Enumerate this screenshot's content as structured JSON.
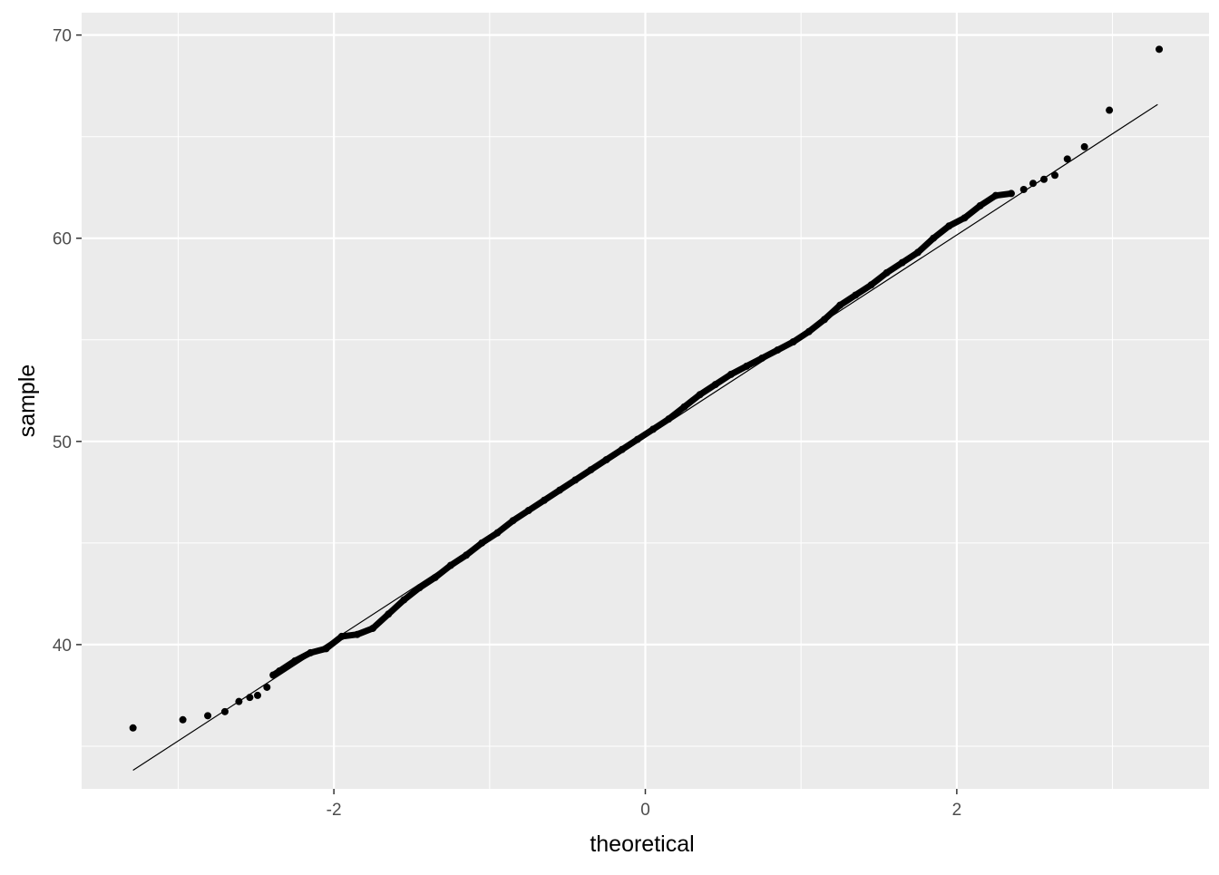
{
  "chart_data": {
    "type": "scatter",
    "subtype": "qq-plot",
    "title": "",
    "xlabel": "theoretical",
    "ylabel": "sample",
    "xlim": [
      -3.62,
      3.62
    ],
    "ylim": [
      32.9,
      71.1
    ],
    "x_ticks": [
      -2,
      0,
      2
    ],
    "y_ticks": [
      40,
      50,
      60,
      70
    ],
    "x_tick_labels": [
      "-2",
      "0",
      "2"
    ],
    "y_tick_labels": [
      "40",
      "50",
      "60",
      "70"
    ],
    "grid": true,
    "colors": {
      "panel": "#EBEBEB",
      "grid": "#FFFFFF",
      "points": "#000000",
      "line": "#000000",
      "tick_text": "#4D4D4D"
    },
    "reference_line": {
      "intercept": 50.2,
      "slope": 4.98,
      "x_range": [
        -3.29,
        3.29
      ]
    },
    "points": [
      [
        -3.29,
        35.9
      ],
      [
        -2.97,
        36.3
      ],
      [
        -2.81,
        36.5
      ],
      [
        -2.7,
        36.7
      ],
      [
        -2.61,
        37.2
      ],
      [
        -2.54,
        37.4
      ],
      [
        -2.49,
        37.5
      ],
      [
        -2.43,
        37.9
      ],
      [
        -2.39,
        38.5
      ],
      [
        -2.35,
        38.7
      ],
      [
        -2.25,
        39.2
      ],
      [
        -2.15,
        39.6
      ],
      [
        -2.05,
        39.8
      ],
      [
        -1.95,
        40.4
      ],
      [
        -1.85,
        40.5
      ],
      [
        -1.75,
        40.8
      ],
      [
        -1.65,
        41.5
      ],
      [
        -1.55,
        42.2
      ],
      [
        -1.45,
        42.8
      ],
      [
        -1.35,
        43.3
      ],
      [
        -1.25,
        43.9
      ],
      [
        -1.15,
        44.4
      ],
      [
        -1.05,
        45.0
      ],
      [
        -0.95,
        45.5
      ],
      [
        -0.85,
        46.1
      ],
      [
        -0.75,
        46.6
      ],
      [
        -0.65,
        47.1
      ],
      [
        -0.55,
        47.6
      ],
      [
        -0.45,
        48.1
      ],
      [
        -0.35,
        48.6
      ],
      [
        -0.25,
        49.1
      ],
      [
        -0.15,
        49.6
      ],
      [
        -0.05,
        50.1
      ],
      [
        0.05,
        50.6
      ],
      [
        0.15,
        51.1
      ],
      [
        0.25,
        51.7
      ],
      [
        0.35,
        52.3
      ],
      [
        0.45,
        52.8
      ],
      [
        0.55,
        53.3
      ],
      [
        0.65,
        53.7
      ],
      [
        0.75,
        54.1
      ],
      [
        0.85,
        54.5
      ],
      [
        0.95,
        54.9
      ],
      [
        1.05,
        55.4
      ],
      [
        1.15,
        56.0
      ],
      [
        1.25,
        56.7
      ],
      [
        1.35,
        57.2
      ],
      [
        1.45,
        57.7
      ],
      [
        1.55,
        58.3
      ],
      [
        1.65,
        58.8
      ],
      [
        1.75,
        59.3
      ],
      [
        1.85,
        60.0
      ],
      [
        1.95,
        60.6
      ],
      [
        2.05,
        61.0
      ],
      [
        2.15,
        61.6
      ],
      [
        2.25,
        62.1
      ],
      [
        2.35,
        62.2
      ],
      [
        2.43,
        62.4
      ],
      [
        2.49,
        62.7
      ],
      [
        2.56,
        62.9
      ],
      [
        2.63,
        63.1
      ],
      [
        2.71,
        63.9
      ],
      [
        2.82,
        64.5
      ],
      [
        2.98,
        66.3
      ],
      [
        3.3,
        69.3
      ]
    ]
  }
}
